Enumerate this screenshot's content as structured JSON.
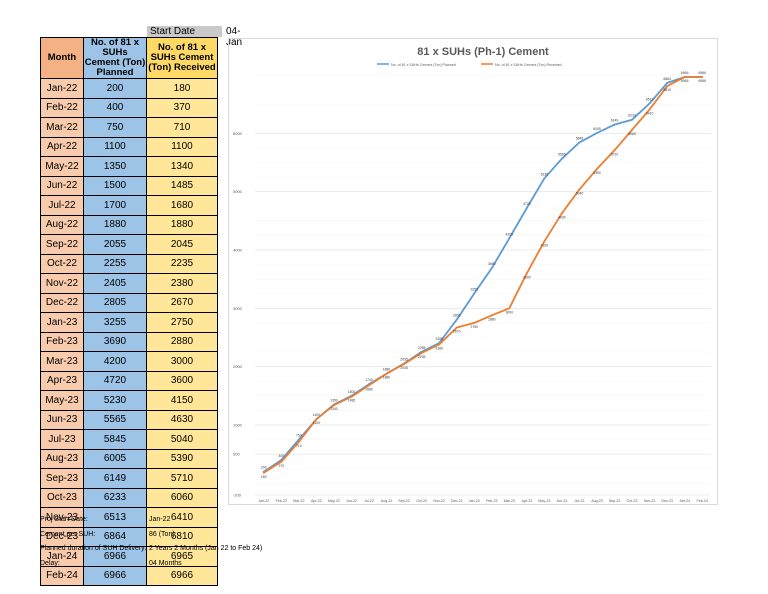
{
  "header": {
    "start_date_label": "Start Date",
    "start_date_value": "04-Jan"
  },
  "table": {
    "headers": [
      "Month",
      "No. of 81 x SUHs Cement (Ton) Planned",
      "No. of 81 x SUHs Cement (Ton) Received"
    ],
    "rows": [
      {
        "month": "Jan-22",
        "planned": "200",
        "received": "180"
      },
      {
        "month": "Feb-22",
        "planned": "400",
        "received": "370"
      },
      {
        "month": "Mar-22",
        "planned": "750",
        "received": "710"
      },
      {
        "month": "Apr-22",
        "planned": "1100",
        "received": "1100"
      },
      {
        "month": "May-22",
        "planned": "1350",
        "received": "1340"
      },
      {
        "month": "Jun-22",
        "planned": "1500",
        "received": "1485"
      },
      {
        "month": "Jul-22",
        "planned": "1700",
        "received": "1680"
      },
      {
        "month": "Aug-22",
        "planned": "1880",
        "received": "1880"
      },
      {
        "month": "Sep-22",
        "planned": "2055",
        "received": "2045"
      },
      {
        "month": "Oct-22",
        "planned": "2255",
        "received": "2235"
      },
      {
        "month": "Nov-22",
        "planned": "2405",
        "received": "2380"
      },
      {
        "month": "Dec-22",
        "planned": "2805",
        "received": "2670"
      },
      {
        "month": "Jan-23",
        "planned": "3255",
        "received": "2750"
      },
      {
        "month": "Feb-23",
        "planned": "3690",
        "received": "2880"
      },
      {
        "month": "Mar-23",
        "planned": "4200",
        "received": "3000"
      },
      {
        "month": "Apr-23",
        "planned": "4720",
        "received": "3600"
      },
      {
        "month": "May-23",
        "planned": "5230",
        "received": "4150"
      },
      {
        "month": "Jun-23",
        "planned": "5565",
        "received": "4630"
      },
      {
        "month": "Jul-23",
        "planned": "5845",
        "received": "5040"
      },
      {
        "month": "Aug-23",
        "planned": "6005",
        "received": "5390"
      },
      {
        "month": "Sep-23",
        "planned": "6149",
        "received": "5710"
      },
      {
        "month": "Oct-23",
        "planned": "6233",
        "received": "6060"
      },
      {
        "month": "Nov-23",
        "planned": "6513",
        "received": "6410"
      },
      {
        "month": "Dec-23",
        "planned": "6864",
        "received": "6810"
      },
      {
        "month": "Jan-24",
        "planned": "6966",
        "received": "6965"
      },
      {
        "month": "Feb-24",
        "planned": "6966",
        "received": "6966"
      }
    ]
  },
  "info": [
    {
      "label": "Proj Start Date:",
      "value": "Jan-22"
    },
    {
      "label": "Cement per SUH:",
      "value": "86 (Ton)"
    },
    {
      "label": "Planned duration of SUH Delivery:",
      "value": "2 Years 2 Months (Jan 22 to Feb 24)"
    },
    {
      "label": "Delay:",
      "value": "04 Months"
    }
  ],
  "chart_data": {
    "type": "line",
    "title": "81 x SUHs (Ph-1) Cement",
    "categories": [
      "Jan-22",
      "Feb-22",
      "Mar-22",
      "Apr-22",
      "May-22",
      "Jun-22",
      "Jul-22",
      "Aug-22",
      "Sep-22",
      "Oct-22",
      "Nov-22",
      "Dec-22",
      "Jan-23",
      "Feb-23",
      "Mar-23",
      "Apr-23",
      "May-23",
      "Jun-23",
      "Jul-23",
      "Aug-23",
      "Sep-23",
      "Oct-23",
      "Nov-23",
      "Dec-23",
      "Jan-24",
      "Feb-24"
    ],
    "series": [
      {
        "name": "No. of 81 x SUHs Cement (Ton) Planned",
        "color": "#5b9bd5",
        "values": [
          200,
          400,
          750,
          1100,
          1350,
          1500,
          1700,
          1880,
          2055,
          2255,
          2405,
          2805,
          3255,
          3690,
          4200,
          4720,
          5230,
          5565,
          5845,
          6005,
          6149,
          6233,
          6513,
          6864,
          6966,
          6966
        ]
      },
      {
        "name": "No. of 81 x SUHs Cement (Ton) Received",
        "color": "#ed7d31",
        "values": [
          180,
          370,
          710,
          1100,
          1340,
          1485,
          1680,
          1880,
          2045,
          2235,
          2380,
          2670,
          2750,
          2880,
          3000,
          3600,
          4150,
          4630,
          5040,
          5390,
          5710,
          6060,
          6410,
          6810,
          6965,
          6966
        ]
      }
    ],
    "y_ticks": [
      "-200",
      "500",
      "1000",
      "2000",
      "3000",
      "4000",
      "5000",
      "6000"
    ],
    "ylim": [
      -200,
      7000
    ],
    "grid": true,
    "legend": "top"
  }
}
